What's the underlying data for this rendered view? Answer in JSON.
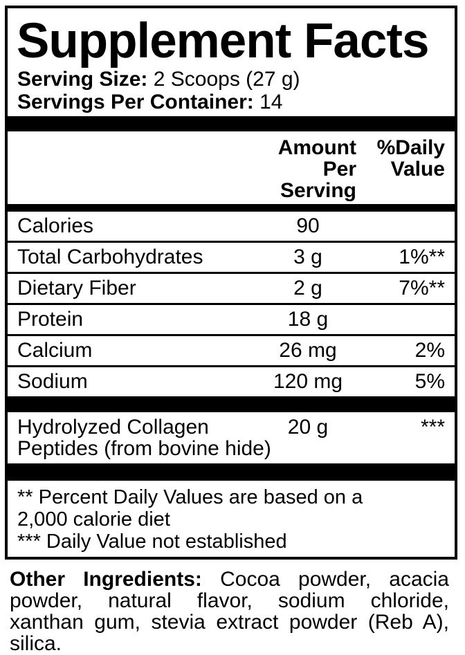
{
  "colors": {
    "ink": "#000000",
    "background": "#ffffff"
  },
  "panel": {
    "title": "Supplement Facts",
    "serving_size_label": "Serving Size:",
    "serving_size_value": "2 Scoops (27 g)",
    "servings_label": "Servings Per Container:",
    "servings_value": "14",
    "header": {
      "amount_line1": "Amount Per",
      "amount_line2": "Serving",
      "dv_line1": "%Daily",
      "dv_line2": "Value"
    },
    "rows": [
      {
        "name": "Calories",
        "amount": "90",
        "dv": ""
      },
      {
        "name": "Total Carbohydrates",
        "amount": "3 g",
        "dv": "1%**"
      },
      {
        "name": "Dietary Fiber",
        "amount": "2 g",
        "dv": "7%**"
      },
      {
        "name": "Protein",
        "amount": "18 g",
        "dv": ""
      },
      {
        "name": "Calcium",
        "amount": "26 mg",
        "dv": "2%"
      },
      {
        "name": "Sodium",
        "amount": "120 mg",
        "dv": "5%"
      }
    ],
    "collagen_row": {
      "name_line1": "Hydrolyzed Collagen",
      "name_line2": "Peptides (from bovine hide)",
      "amount": "20 g",
      "dv": "***"
    },
    "footnotes": [
      "** Percent Daily Values are based on a",
      "2,000 calorie diet",
      "*** Daily Value not established"
    ]
  },
  "other_ingredients": {
    "label": "Other Ingredients:",
    "line1_rest": "Cocoa powder, acacia",
    "line2": "powder, natural flavor, sodium chloride,",
    "line3": "xanthan gum, stevia extract powder (Reb A),",
    "line4": "silica."
  }
}
